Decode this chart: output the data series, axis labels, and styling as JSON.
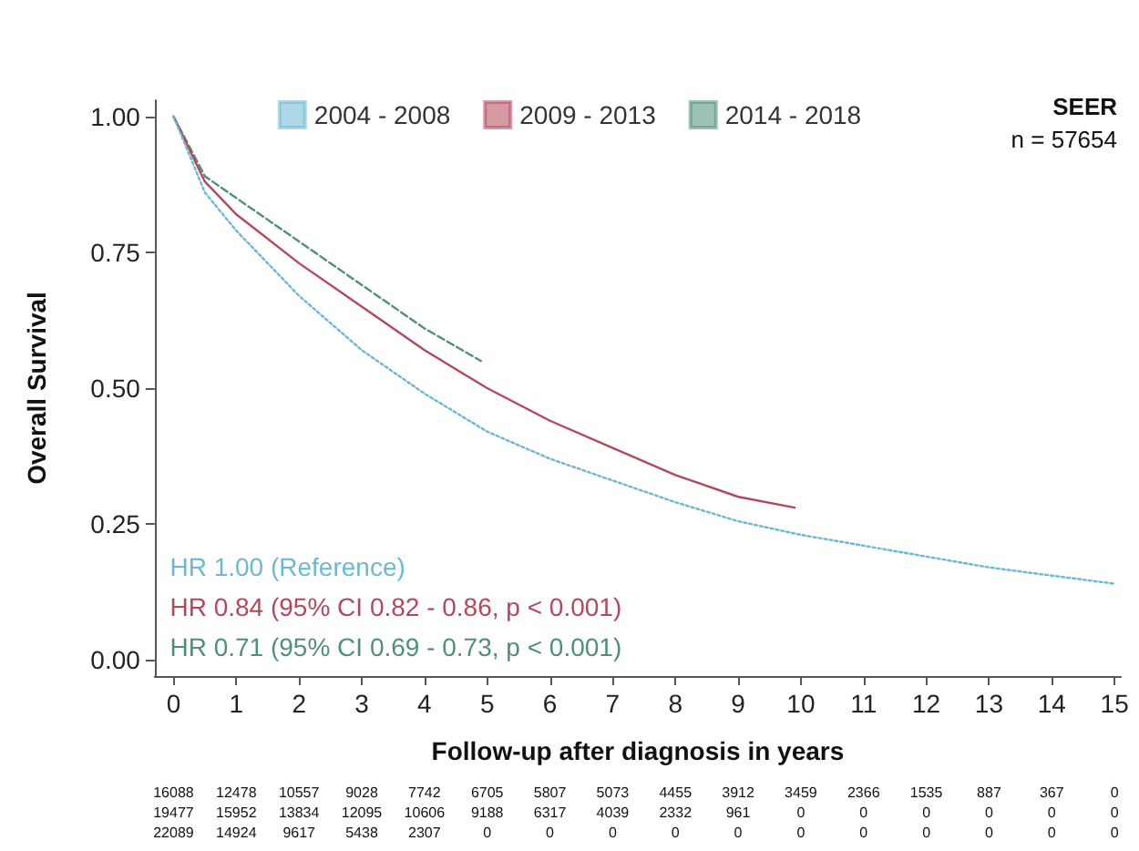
{
  "chart_data": {
    "type": "line",
    "xlabel": "Follow-up after diagnosis in years",
    "ylabel": "Overall Survival",
    "xlim": [
      -0.3,
      15.1
    ],
    "xticks": [
      0,
      1,
      2,
      3,
      4,
      5,
      6,
      7,
      8,
      9,
      10,
      11,
      12,
      13,
      14,
      15
    ],
    "ylim": [
      -0.03,
      1.03
    ],
    "yticks": [
      {
        "value": 0,
        "label": "0.00"
      },
      {
        "value": 0.25,
        "label": "0.25"
      },
      {
        "value": 0.5,
        "label": "0.50"
      },
      {
        "value": 0.75,
        "label": "0.75"
      },
      {
        "value": 1,
        "label": "1.00"
      }
    ],
    "grid": false,
    "legend": "top",
    "marker": "none",
    "series": [
      {
        "name": "2004 - 2008",
        "color": "#6bb8d4",
        "line_style": "dotted",
        "x": [
          0,
          0.5,
          1,
          2,
          3,
          4,
          5,
          6,
          7,
          8,
          9,
          10,
          11,
          12,
          13,
          14,
          15
        ],
        "values": [
          1,
          0.86,
          0.79,
          0.67,
          0.57,
          0.49,
          0.42,
          0.37,
          0.33,
          0.29,
          0.255,
          0.23,
          0.21,
          0.19,
          0.17,
          0.155,
          0.14
        ]
      },
      {
        "name": "2009 - 2013",
        "color": "#b5475a",
        "line_style": "solid",
        "x": [
          0,
          0.5,
          1,
          2,
          3,
          4,
          5,
          6,
          7,
          8,
          9,
          9.9
        ],
        "values": [
          1,
          0.88,
          0.82,
          0.73,
          0.65,
          0.57,
          0.5,
          0.44,
          0.39,
          0.34,
          0.3,
          0.28
        ]
      },
      {
        "name": "2014 - 2018",
        "color": "#4f8f7a",
        "line_style": "dashed",
        "x": [
          0,
          0.5,
          1,
          2,
          3,
          4,
          4.9
        ],
        "values": [
          1,
          0.89,
          0.85,
          0.77,
          0.69,
          0.61,
          0.55
        ]
      }
    ],
    "annotations": [
      "SEER",
      "n = 57654",
      "HR 1.00 (Reference)",
      "HR 0.84 (95% CI 0.82 - 0.86, p < 0.001)",
      "HR 0.71 (95% CI 0.69 - 0.73, p < 0.001)",
      "16088 12478 10557 9028 7742 6705 5807 5073 4455 3912 3459 2366 1535 887 367 0",
      "19477 15952 13834 12095 10606 9188 6317 4039 2332 961 0 0 0 0 0 0",
      "22089 14924 9617 5438 2307 0 0 0 0 0 0 0 0 0 0 0"
    ]
  }
}
